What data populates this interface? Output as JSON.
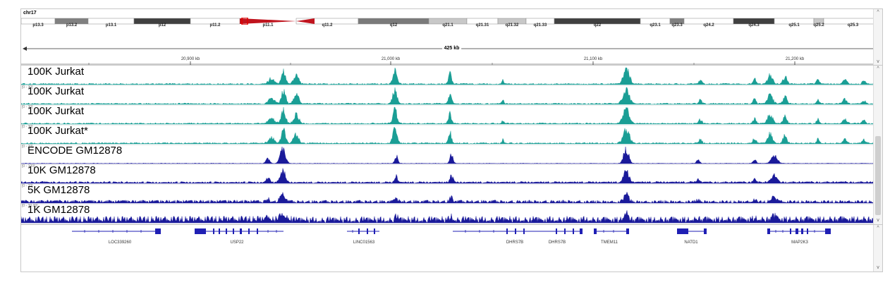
{
  "chromosome": {
    "name": "chr17",
    "bands": [
      {
        "label": "p13.3",
        "color": "#ffffff"
      },
      {
        "label": "p13.2",
        "color": "#808080"
      },
      {
        "label": "p13.1",
        "color": "#ffffff"
      },
      {
        "label": "p12",
        "color": "#404040"
      },
      {
        "label": "p11.2",
        "color": "#ffffff"
      },
      {
        "label": "p11.1",
        "color": "#c0141e"
      },
      {
        "label": "q11.2",
        "color": "#ffffff"
      },
      {
        "label": "q12",
        "color": "#7a7a7a"
      },
      {
        "label": "q21.1",
        "color": "#c8c8c8"
      },
      {
        "label": "q21.31",
        "color": "#ffffff"
      },
      {
        "label": "q21.32",
        "color": "#c8c8c8"
      },
      {
        "label": "q21.33",
        "color": "#ffffff"
      },
      {
        "label": "q22",
        "color": "#404040"
      },
      {
        "label": "q23.1",
        "color": "#ffffff"
      },
      {
        "label": "q23.3",
        "color": "#808080"
      },
      {
        "label": "q24.2",
        "color": "#ffffff"
      },
      {
        "label": "q24.3",
        "color": "#404040"
      },
      {
        "label": "q25.1",
        "color": "#ffffff"
      },
      {
        "label": "q25.2",
        "color": "#c8c8c8"
      },
      {
        "label": "q25.3",
        "color": "#ffffff"
      }
    ]
  },
  "ruler": {
    "span_label": "425 kb",
    "ticks": [
      "20,900 kb",
      "21,000 kb",
      "21,100 kb",
      "21,200 kb"
    ]
  },
  "tracks": [
    {
      "name": "100K Jurkat",
      "range": "",
      "color": "#1a9e95"
    },
    {
      "name": "100K Jurkat",
      "range": "[0 - 30]",
      "color": "#1a9e95"
    },
    {
      "name": "100K Jurkat",
      "range": "[0 - 30]",
      "color": "#1a9e95"
    },
    {
      "name": "100K Jurkat*",
      "range": "[0 - 30]",
      "color": "#1a9e95"
    },
    {
      "name": "ENCODE GM12878",
      "range": "[0 - 20]",
      "color": "#1a1a9a"
    },
    {
      "name": "10K GM12878",
      "range": "[0 - 100]",
      "color": "#1a1a9a"
    },
    {
      "name": "5K GM12878",
      "range": "[0 - 20]",
      "color": "#1a1a9a"
    },
    {
      "name": "1K GM12878",
      "range": "[0 - 30.00]",
      "color": "#1a1a9a"
    }
  ],
  "genes": [
    {
      "label": "LOC339260"
    },
    {
      "label": "USP22"
    },
    {
      "label": "LINC01563"
    },
    {
      "label": "DHRS7B"
    },
    {
      "label": "DHRS7B"
    },
    {
      "label": "TMEM11"
    },
    {
      "label": "NATD1"
    },
    {
      "label": "MAP2K3"
    }
  ],
  "colors": {
    "gene": "#1f1fb4",
    "teal": "#1a9e95",
    "navy": "#1a1a9a",
    "centromere": "#c0141e"
  }
}
